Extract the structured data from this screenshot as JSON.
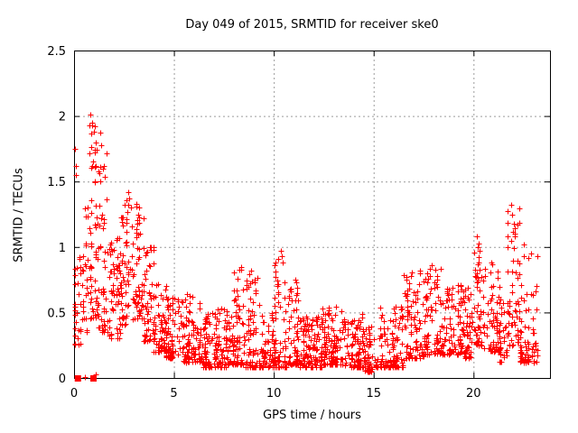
{
  "window": {
    "background": "#ffffff"
  },
  "chart_data": {
    "type": "scatter",
    "title": "Day 049 of 2015, SRMTID for receiver ske0",
    "xlabel": "GPS time / hours",
    "ylabel": "SRMTID / TECUs",
    "xlim": [
      0,
      23.83
    ],
    "ylim": [
      0,
      2.5
    ],
    "xticks": [
      0,
      5,
      10,
      15,
      20
    ],
    "xtick_labels": [
      "0",
      "5",
      "10",
      "15",
      "20"
    ],
    "yticks": [
      0,
      0.5,
      1,
      1.5,
      2,
      2.5
    ],
    "ytick_labels": [
      "0",
      "0.5",
      "1",
      "1.5",
      "2",
      "2.5"
    ],
    "grid": true,
    "legend": "none",
    "marker": "plus",
    "marker_color": "#ff0000",
    "grid_color": "#9c9c9c",
    "border_color": "#000000",
    "description": "Dense scatter of SRMTID values vs GPS time; high activity 0-4 h (max ~2.0 TECU near 0.8-1.0 h, secondary peaks ~1.35 near 2.7-3.2 h), quiet midday baseline ~0.1-0.5 TECU with bursts to ~1.0 near 10.3 h, rising activity after 16.5 h with peaks ~1.3 near 22 h; data ends ~23.2 h",
    "envelope_segments_x0_x1_n_lo_hi_skew": [
      [
        0.0,
        0.3,
        22,
        0.25,
        1.05,
        1.4
      ],
      [
        0.3,
        0.7,
        30,
        0.35,
        1.35,
        1.5
      ],
      [
        0.7,
        1.2,
        60,
        0.45,
        1.95,
        1.5
      ],
      [
        1.2,
        1.7,
        50,
        0.35,
        1.75,
        1.9
      ],
      [
        1.7,
        2.3,
        60,
        0.3,
        1.1,
        1.7
      ],
      [
        2.3,
        3.0,
        60,
        0.4,
        1.38,
        1.7
      ],
      [
        3.0,
        3.5,
        50,
        0.45,
        1.32,
        1.4
      ],
      [
        3.5,
        4.0,
        50,
        0.28,
        1.0,
        1.9
      ],
      [
        4.0,
        4.6,
        60,
        0.2,
        0.75,
        2.0
      ],
      [
        4.6,
        5.4,
        80,
        0.15,
        0.62,
        2.1
      ],
      [
        5.4,
        6.4,
        100,
        0.12,
        0.66,
        2.1
      ],
      [
        6.4,
        7.2,
        80,
        0.08,
        0.5,
        2.1
      ],
      [
        7.2,
        8.0,
        80,
        0.08,
        0.55,
        2.1
      ],
      [
        8.0,
        8.6,
        60,
        0.1,
        0.85,
        2.5
      ],
      [
        8.6,
        9.4,
        80,
        0.08,
        0.8,
        2.7
      ],
      [
        9.4,
        10.0,
        60,
        0.08,
        0.5,
        2.1
      ],
      [
        10.0,
        10.7,
        65,
        0.08,
        1.0,
        2.6
      ],
      [
        10.7,
        11.3,
        60,
        0.1,
        0.75,
        2.5
      ],
      [
        11.3,
        12.4,
        110,
        0.08,
        0.5,
        2.0
      ],
      [
        12.4,
        13.5,
        110,
        0.1,
        0.55,
        2.0
      ],
      [
        13.5,
        14.5,
        95,
        0.08,
        0.5,
        2.0
      ],
      [
        14.5,
        15.3,
        65,
        0.05,
        0.4,
        1.9
      ],
      [
        15.3,
        16.5,
        110,
        0.08,
        0.55,
        2.0
      ],
      [
        16.5,
        17.5,
        85,
        0.15,
        0.82,
        1.9
      ],
      [
        17.5,
        18.4,
        80,
        0.18,
        0.88,
        1.9
      ],
      [
        18.4,
        19.4,
        85,
        0.18,
        0.72,
        1.9
      ],
      [
        19.4,
        20.0,
        55,
        0.15,
        0.7,
        1.9
      ],
      [
        20.0,
        20.5,
        48,
        0.25,
        1.05,
        1.9
      ],
      [
        20.5,
        21.3,
        65,
        0.2,
        0.9,
        1.9
      ],
      [
        21.3,
        21.7,
        32,
        0.12,
        0.6,
        1.7
      ],
      [
        21.7,
        22.3,
        55,
        0.25,
        1.3,
        2.1
      ],
      [
        22.3,
        23.2,
        80,
        0.12,
        1.0,
        2.3
      ]
    ],
    "feature_points": [
      [
        0.05,
        1.75
      ],
      [
        0.07,
        1.62
      ],
      [
        0.1,
        1.55
      ],
      [
        0.82,
        2.01
      ],
      [
        0.9,
        1.95
      ],
      [
        1.0,
        1.88
      ],
      [
        1.05,
        1.72
      ],
      [
        1.3,
        1.87
      ],
      [
        1.35,
        1.78
      ],
      [
        1.45,
        1.6
      ],
      [
        2.7,
        1.42
      ],
      [
        2.75,
        1.37
      ],
      [
        2.85,
        1.3
      ],
      [
        3.1,
        1.33
      ],
      [
        3.2,
        1.25
      ],
      [
        8.35,
        0.85
      ],
      [
        8.85,
        0.82
      ],
      [
        10.35,
        0.97
      ],
      [
        10.4,
        0.93
      ],
      [
        10.45,
        0.88
      ],
      [
        11.1,
        0.75
      ],
      [
        17.3,
        0.82
      ],
      [
        17.9,
        0.86
      ],
      [
        20.15,
        1.08
      ],
      [
        20.2,
        1.0
      ],
      [
        21.9,
        1.32
      ],
      [
        21.95,
        1.25
      ],
      [
        22.0,
        1.18
      ],
      [
        22.05,
        1.1
      ],
      [
        22.5,
        1.02
      ]
    ],
    "zero_square_points": [
      [
        0.17,
        0.0
      ],
      [
        0.95,
        0.0
      ]
    ],
    "extra_plus_points": [
      [
        0.55,
        0.01
      ],
      [
        1.1,
        0.03
      ]
    ],
    "seed": 20150449
  }
}
